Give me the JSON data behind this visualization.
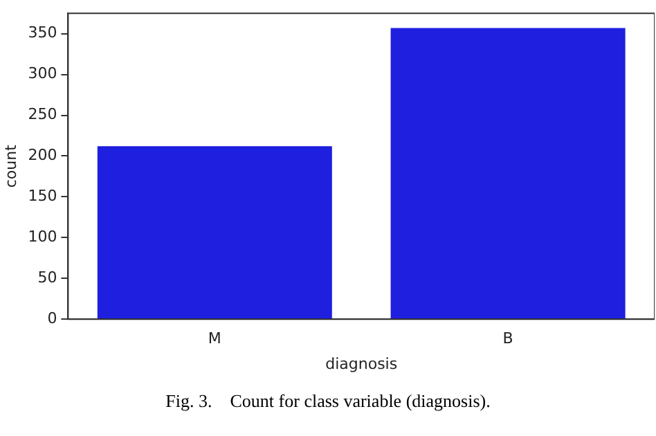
{
  "chart_data": {
    "type": "bar",
    "xlabel": "diagnosis",
    "ylabel": "count",
    "categories": [
      "M",
      "B"
    ],
    "values": [
      212,
      357
    ],
    "color": "#1f1fdf",
    "ylim": [
      0,
      375
    ],
    "yticks": [
      0,
      50,
      100,
      150,
      200,
      250,
      300,
      350
    ],
    "grid": false,
    "legend": false,
    "annotations": [
      "Fig. 3.    Count for class variable (diagnosis)."
    ]
  }
}
